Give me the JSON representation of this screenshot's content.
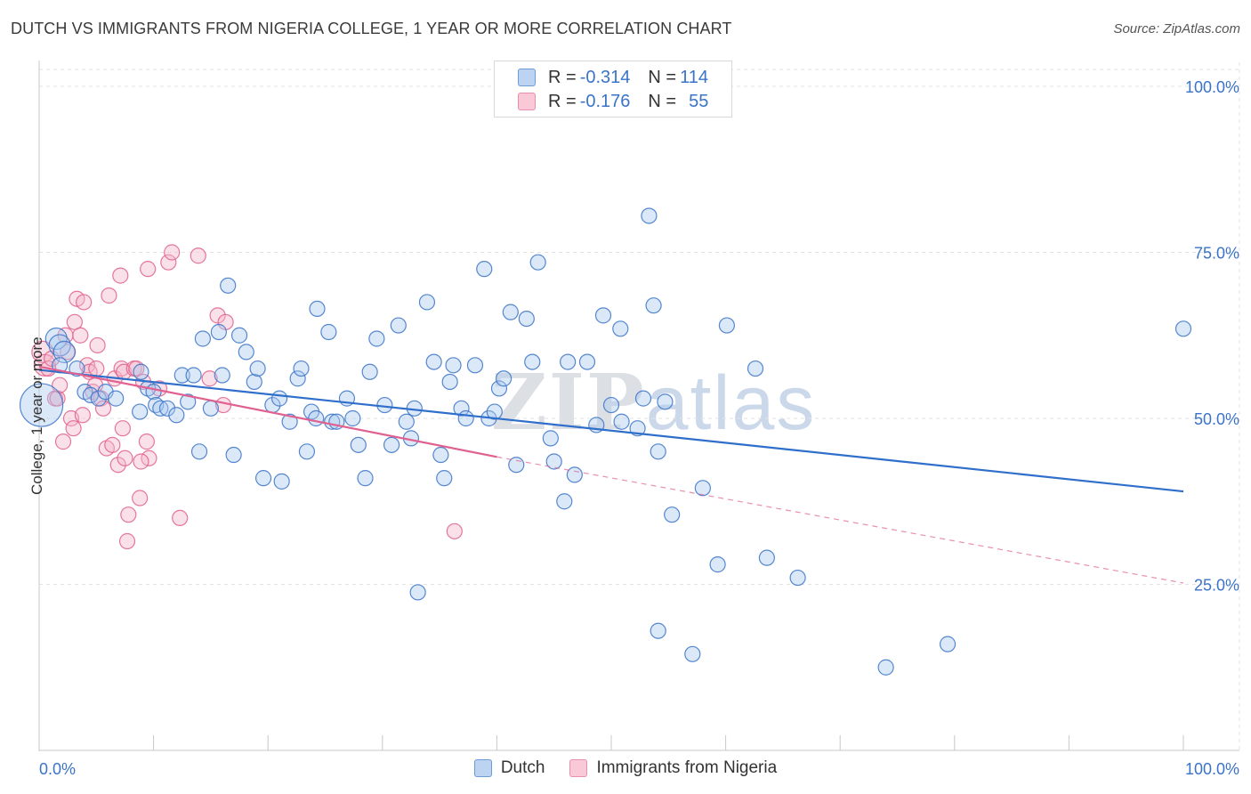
{
  "title": "DUTCH VS IMMIGRANTS FROM NIGERIA COLLEGE, 1 YEAR OR MORE CORRELATION CHART",
  "source": "Source: ZipAtlas.com",
  "watermark": {
    "part1": "ZIP",
    "part2": "atlas"
  },
  "colors": {
    "blue": "#3a73c8",
    "blue_fill": "#a9c8ee",
    "blue_line": "#2f6fcb",
    "pink": "#e0608e",
    "pink_fill": "#f4b6c9",
    "pink_line": "#e06090",
    "grid": "#e3e3e3"
  },
  "legend": {
    "rows": [
      {
        "r_label": "R = ",
        "r_value": "-0.314",
        "n_label": "N = ",
        "n_value": "114"
      },
      {
        "r_label": "R = ",
        "r_value": "-0.176",
        "n_label": "N = ",
        "n_value": "55"
      }
    ]
  },
  "bottom_legend": [
    "Dutch",
    "Immigrants from Nigeria"
  ],
  "chart_data": {
    "type": "scatter",
    "title": "DUTCH VS IMMIGRANTS FROM NIGERIA COLLEGE, 1 YEAR OR MORE CORRELATION CHART",
    "xlabel": "",
    "ylabel": "College, 1 year or more",
    "xlim": [
      0,
      100
    ],
    "ylim": [
      0,
      105
    ],
    "x_tick_labels": [
      "0.0%",
      "100.0%"
    ],
    "y_tick_labels": [
      "25.0%",
      "50.0%",
      "75.0%",
      "100.0%"
    ],
    "y_ticks": [
      25,
      50,
      75,
      100
    ],
    "series": [
      {
        "name": "Dutch",
        "r": -0.314,
        "n": 114,
        "trend": {
          "x": [
            0,
            100
          ],
          "y": [
            57.3,
            39.0
          ]
        },
        "points": [
          [
            0.2,
            52,
            4
          ],
          [
            1.5,
            62,
            2
          ],
          [
            1.8,
            61,
            2
          ],
          [
            2.2,
            60,
            2
          ],
          [
            1.8,
            58,
            1
          ],
          [
            3.3,
            57.5,
            1
          ],
          [
            4,
            54,
            1
          ],
          [
            4.5,
            53.5,
            1
          ],
          [
            5.2,
            53,
            1
          ],
          [
            5.8,
            54,
            1
          ],
          [
            6.7,
            53,
            1
          ],
          [
            8.8,
            51,
            1
          ],
          [
            8.9,
            57,
            1
          ],
          [
            9.5,
            54.5,
            1
          ],
          [
            10,
            54,
            1
          ],
          [
            10.2,
            52,
            1
          ],
          [
            10.6,
            51.5,
            1
          ],
          [
            11.2,
            51.5,
            1
          ],
          [
            12,
            50.5,
            1
          ],
          [
            12.5,
            56.5,
            1
          ],
          [
            13,
            52.5,
            1
          ],
          [
            13.5,
            56.5,
            1
          ],
          [
            14,
            45,
            1
          ],
          [
            14.3,
            62,
            1
          ],
          [
            15,
            51.5,
            1
          ],
          [
            15.7,
            63,
            1
          ],
          [
            16,
            56.5,
            1
          ],
          [
            16.5,
            70,
            1
          ],
          [
            17,
            44.5,
            1
          ],
          [
            17.5,
            62.5,
            1
          ],
          [
            18.1,
            60,
            1
          ],
          [
            18.8,
            55.5,
            1
          ],
          [
            19.1,
            57.5,
            1
          ],
          [
            19.6,
            41,
            1
          ],
          [
            20.4,
            52,
            1
          ],
          [
            21,
            53,
            1
          ],
          [
            21.2,
            40.5,
            1
          ],
          [
            21.9,
            49.5,
            1
          ],
          [
            22.6,
            56,
            1
          ],
          [
            22.9,
            57.5,
            1
          ],
          [
            23.4,
            45,
            1
          ],
          [
            23.8,
            51,
            1
          ],
          [
            24.3,
            66.5,
            1
          ],
          [
            24.2,
            50,
            1
          ],
          [
            25.3,
            63,
            1
          ],
          [
            25.6,
            49.5,
            1
          ],
          [
            26,
            49.5,
            1
          ],
          [
            26.9,
            53,
            1
          ],
          [
            27.4,
            50,
            1
          ],
          [
            27.9,
            46,
            1
          ],
          [
            28.5,
            41,
            1
          ],
          [
            28.9,
            57,
            1
          ],
          [
            29.5,
            62,
            1
          ],
          [
            30.2,
            52,
            1
          ],
          [
            30.8,
            46,
            1
          ],
          [
            31.4,
            64,
            1
          ],
          [
            32.1,
            49.5,
            1
          ],
          [
            32.5,
            47,
            1
          ],
          [
            32.8,
            51.5,
            1
          ],
          [
            33.1,
            23.8,
            1
          ],
          [
            33.9,
            67.5,
            1
          ],
          [
            34.5,
            58.5,
            1
          ],
          [
            35.1,
            44.5,
            1
          ],
          [
            35.4,
            41,
            1
          ],
          [
            35.9,
            55.5,
            1
          ],
          [
            36.2,
            58,
            1
          ],
          [
            36.9,
            51.5,
            1
          ],
          [
            37.3,
            50,
            1
          ],
          [
            38.1,
            58,
            1
          ],
          [
            38.9,
            72.5,
            1
          ],
          [
            39.3,
            50,
            1
          ],
          [
            39.8,
            51,
            1
          ],
          [
            40.2,
            54.5,
            1
          ],
          [
            40.6,
            56,
            1
          ],
          [
            41.2,
            66,
            1
          ],
          [
            41.7,
            43,
            1
          ],
          [
            42.6,
            65,
            1
          ],
          [
            43.1,
            58.5,
            1
          ],
          [
            43.6,
            73.5,
            1
          ],
          [
            44.7,
            47,
            1
          ],
          [
            45,
            43.5,
            1
          ],
          [
            45.9,
            37.5,
            1
          ],
          [
            46.2,
            58.5,
            1
          ],
          [
            46.8,
            41.5,
            1
          ],
          [
            47.9,
            58.5,
            1
          ],
          [
            48.7,
            49,
            1
          ],
          [
            49.3,
            65.5,
            1
          ],
          [
            50,
            52,
            1
          ],
          [
            50.8,
            63.5,
            1
          ],
          [
            50.9,
            49.5,
            1
          ],
          [
            52.3,
            48.5,
            1
          ],
          [
            52.8,
            53,
            1
          ],
          [
            53.3,
            80.5,
            1
          ],
          [
            53.7,
            67,
            1
          ],
          [
            54.1,
            45,
            1
          ],
          [
            54.7,
            52.5,
            1
          ],
          [
            55.3,
            35.5,
            1
          ],
          [
            58,
            39.5,
            1
          ],
          [
            59.3,
            28,
            1
          ],
          [
            60.1,
            64,
            1
          ],
          [
            62.6,
            57.5,
            1
          ],
          [
            63.6,
            29,
            1
          ],
          [
            66.3,
            26,
            1
          ],
          [
            54.1,
            18,
            1
          ],
          [
            57.1,
            14.5,
            1
          ],
          [
            74,
            12.5,
            1
          ],
          [
            79.4,
            16,
            1
          ],
          [
            100,
            63.5,
            1
          ]
        ]
      },
      {
        "name": "Immigrants from Nigeria",
        "r": -0.176,
        "n": 55,
        "trend": {
          "x": [
            0,
            40
          ],
          "y": [
            57.8,
            44.2
          ]
        },
        "trend_extension": {
          "x": [
            40,
            100
          ],
          "y": [
            44.2,
            25.2
          ]
        },
        "points": [
          [
            0.3,
            60,
            2
          ],
          [
            0.5,
            58,
            2
          ],
          [
            0.8,
            57.5,
            1
          ],
          [
            1.1,
            59,
            1
          ],
          [
            1.4,
            53,
            1
          ],
          [
            1.6,
            53,
            1
          ],
          [
            1.8,
            55,
            1
          ],
          [
            2.1,
            46.5,
            1
          ],
          [
            2.3,
            62.5,
            1
          ],
          [
            2.5,
            60,
            1
          ],
          [
            2.8,
            50,
            1
          ],
          [
            3,
            48.5,
            1
          ],
          [
            3.1,
            64.5,
            1
          ],
          [
            3.3,
            68,
            1
          ],
          [
            3.6,
            62.5,
            1
          ],
          [
            3.8,
            50.5,
            1
          ],
          [
            3.9,
            67.5,
            1
          ],
          [
            4.2,
            58,
            1
          ],
          [
            4.4,
            57,
            1
          ],
          [
            4.7,
            54,
            1
          ],
          [
            4.9,
            55,
            1
          ],
          [
            5,
            57.5,
            1
          ],
          [
            5.1,
            61,
            1
          ],
          [
            5.4,
            53,
            1
          ],
          [
            5.6,
            51.5,
            1
          ],
          [
            5.9,
            45.5,
            1
          ],
          [
            6.1,
            68.5,
            1
          ],
          [
            6.4,
            46,
            1
          ],
          [
            6.6,
            56,
            1
          ],
          [
            6.9,
            43,
            1
          ],
          [
            7.1,
            71.5,
            1
          ],
          [
            7.3,
            48.5,
            1
          ],
          [
            7.5,
            44,
            1
          ],
          [
            7.8,
            35.5,
            1
          ],
          [
            7.2,
            57.5,
            1
          ],
          [
            7.4,
            57,
            1
          ],
          [
            7.7,
            31.5,
            1
          ],
          [
            8.3,
            57.5,
            1
          ],
          [
            8.5,
            57.5,
            1
          ],
          [
            9.4,
            46.5,
            1
          ],
          [
            9.6,
            44,
            1
          ],
          [
            8.8,
            38,
            1
          ],
          [
            8.9,
            43.5,
            1
          ],
          [
            10.5,
            54.5,
            1
          ],
          [
            9.1,
            55.5,
            1
          ],
          [
            11.3,
            73.5,
            1
          ],
          [
            11.6,
            75,
            1
          ],
          [
            12.3,
            35,
            1
          ],
          [
            13.9,
            74.5,
            1
          ],
          [
            14.9,
            56,
            1
          ],
          [
            15.6,
            65.5,
            1
          ],
          [
            16.3,
            64.5,
            1
          ],
          [
            16.1,
            52,
            1
          ],
          [
            9.5,
            72.5,
            1
          ],
          [
            36.3,
            33,
            1
          ]
        ]
      }
    ]
  }
}
